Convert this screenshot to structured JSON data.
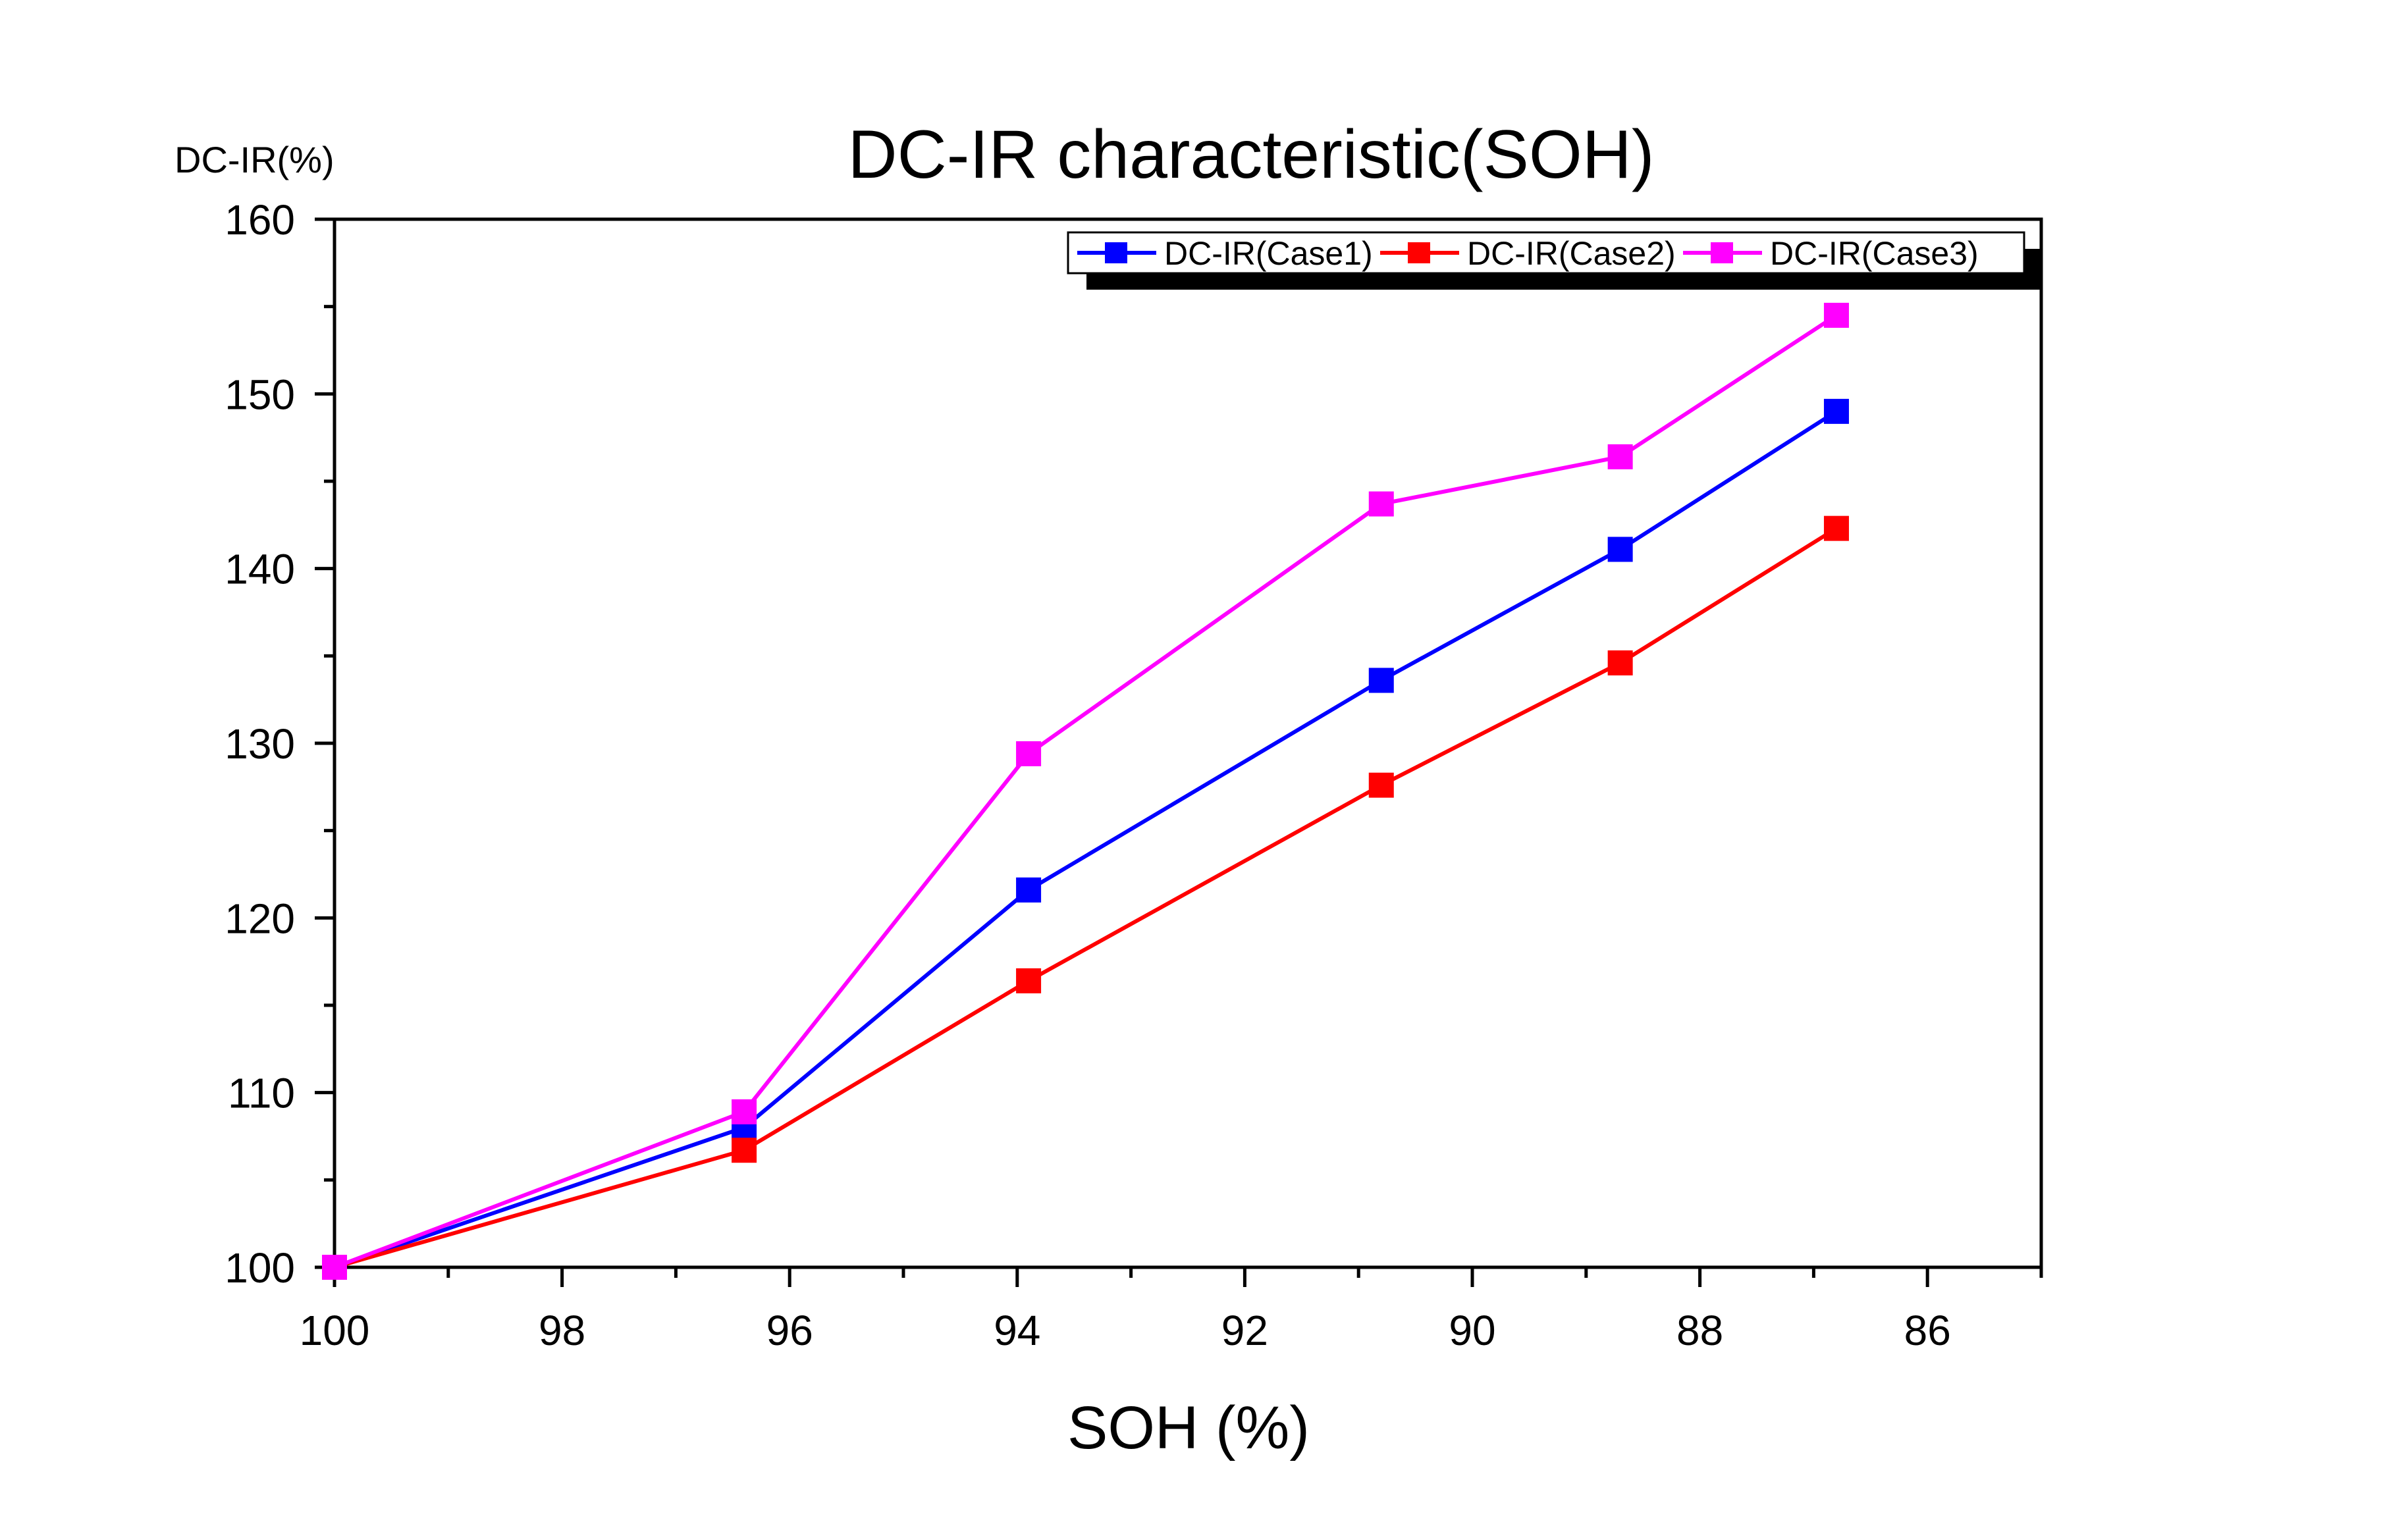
{
  "chart_data": {
    "type": "line",
    "title": "DC-IR characteristic(SOH)",
    "xlabel": "SOH (%)",
    "ylabel": "DC-IR(%)",
    "xlim": [
      100,
      85
    ],
    "ylim": [
      100,
      160
    ],
    "x_reversed": true,
    "x_ticks": [
      100,
      98,
      96,
      94,
      92,
      90,
      88,
      86
    ],
    "y_ticks": [
      100,
      110,
      120,
      130,
      140,
      150,
      160
    ],
    "grid": false,
    "legend_position": "top-right",
    "marker": "square",
    "series": [
      {
        "name": "DC-IR(Case1)",
        "color": "#0000ff",
        "x": [
          100,
          96.4,
          93.9,
          90.8,
          88.7,
          86.8
        ],
        "y": [
          100,
          108,
          121.6,
          133.6,
          141.1,
          149
        ]
      },
      {
        "name": "DC-IR(Case2)",
        "color": "#ff0000",
        "x": [
          100,
          96.4,
          93.9,
          90.8,
          88.7,
          86.8
        ],
        "y": [
          100,
          106.7,
          116.4,
          127.6,
          134.6,
          142.3
        ]
      },
      {
        "name": "DC-IR(Case3)",
        "color": "#ff00ff",
        "x": [
          100,
          96.4,
          93.9,
          90.8,
          88.7,
          86.8
        ],
        "y": [
          100,
          108.9,
          129.4,
          143.7,
          146.4,
          154.5
        ]
      }
    ]
  }
}
